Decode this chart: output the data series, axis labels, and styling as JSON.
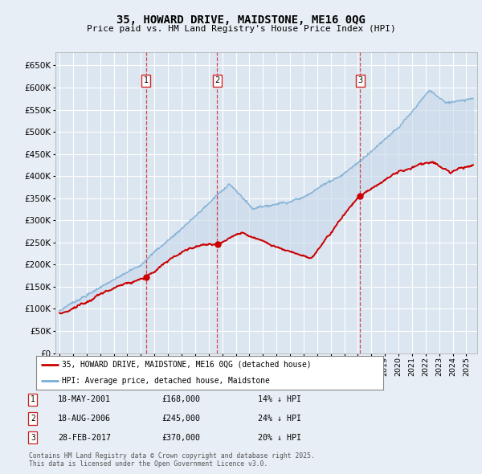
{
  "title": "35, HOWARD DRIVE, MAIDSTONE, ME16 0QG",
  "subtitle": "Price paid vs. HM Land Registry's House Price Index (HPI)",
  "red_label": "35, HOWARD DRIVE, MAIDSTONE, ME16 0QG (detached house)",
  "blue_label": "HPI: Average price, detached house, Maidstone",
  "transactions": [
    {
      "num": 1,
      "date": "18-MAY-2001",
      "price": "£168,000",
      "pct": "14% ↓ HPI",
      "year": 2001.38,
      "value": 168000
    },
    {
      "num": 2,
      "date": "18-AUG-2006",
      "price": "£245,000",
      "pct": "24% ↓ HPI",
      "year": 2006.63,
      "value": 245000
    },
    {
      "num": 3,
      "date": "28-FEB-2017",
      "price": "£370,000",
      "pct": "20% ↓ HPI",
      "year": 2017.16,
      "value": 370000
    }
  ],
  "footer": "Contains HM Land Registry data © Crown copyright and database right 2025.\nThis data is licensed under the Open Government Licence v3.0.",
  "ylim": [
    0,
    680000
  ],
  "yticks": [
    0,
    50000,
    100000,
    150000,
    200000,
    250000,
    300000,
    350000,
    400000,
    450000,
    500000,
    550000,
    600000,
    650000
  ],
  "xlim_start": 1994.7,
  "xlim_end": 2025.8,
  "background_color": "#e8eef5",
  "plot_bg": "#dce6f0",
  "red_color": "#cc0000",
  "blue_color": "#7aadd4",
  "grid_color": "#ffffff",
  "marker_box_color": "#cc2222",
  "fill_color": "#c8d8ea"
}
